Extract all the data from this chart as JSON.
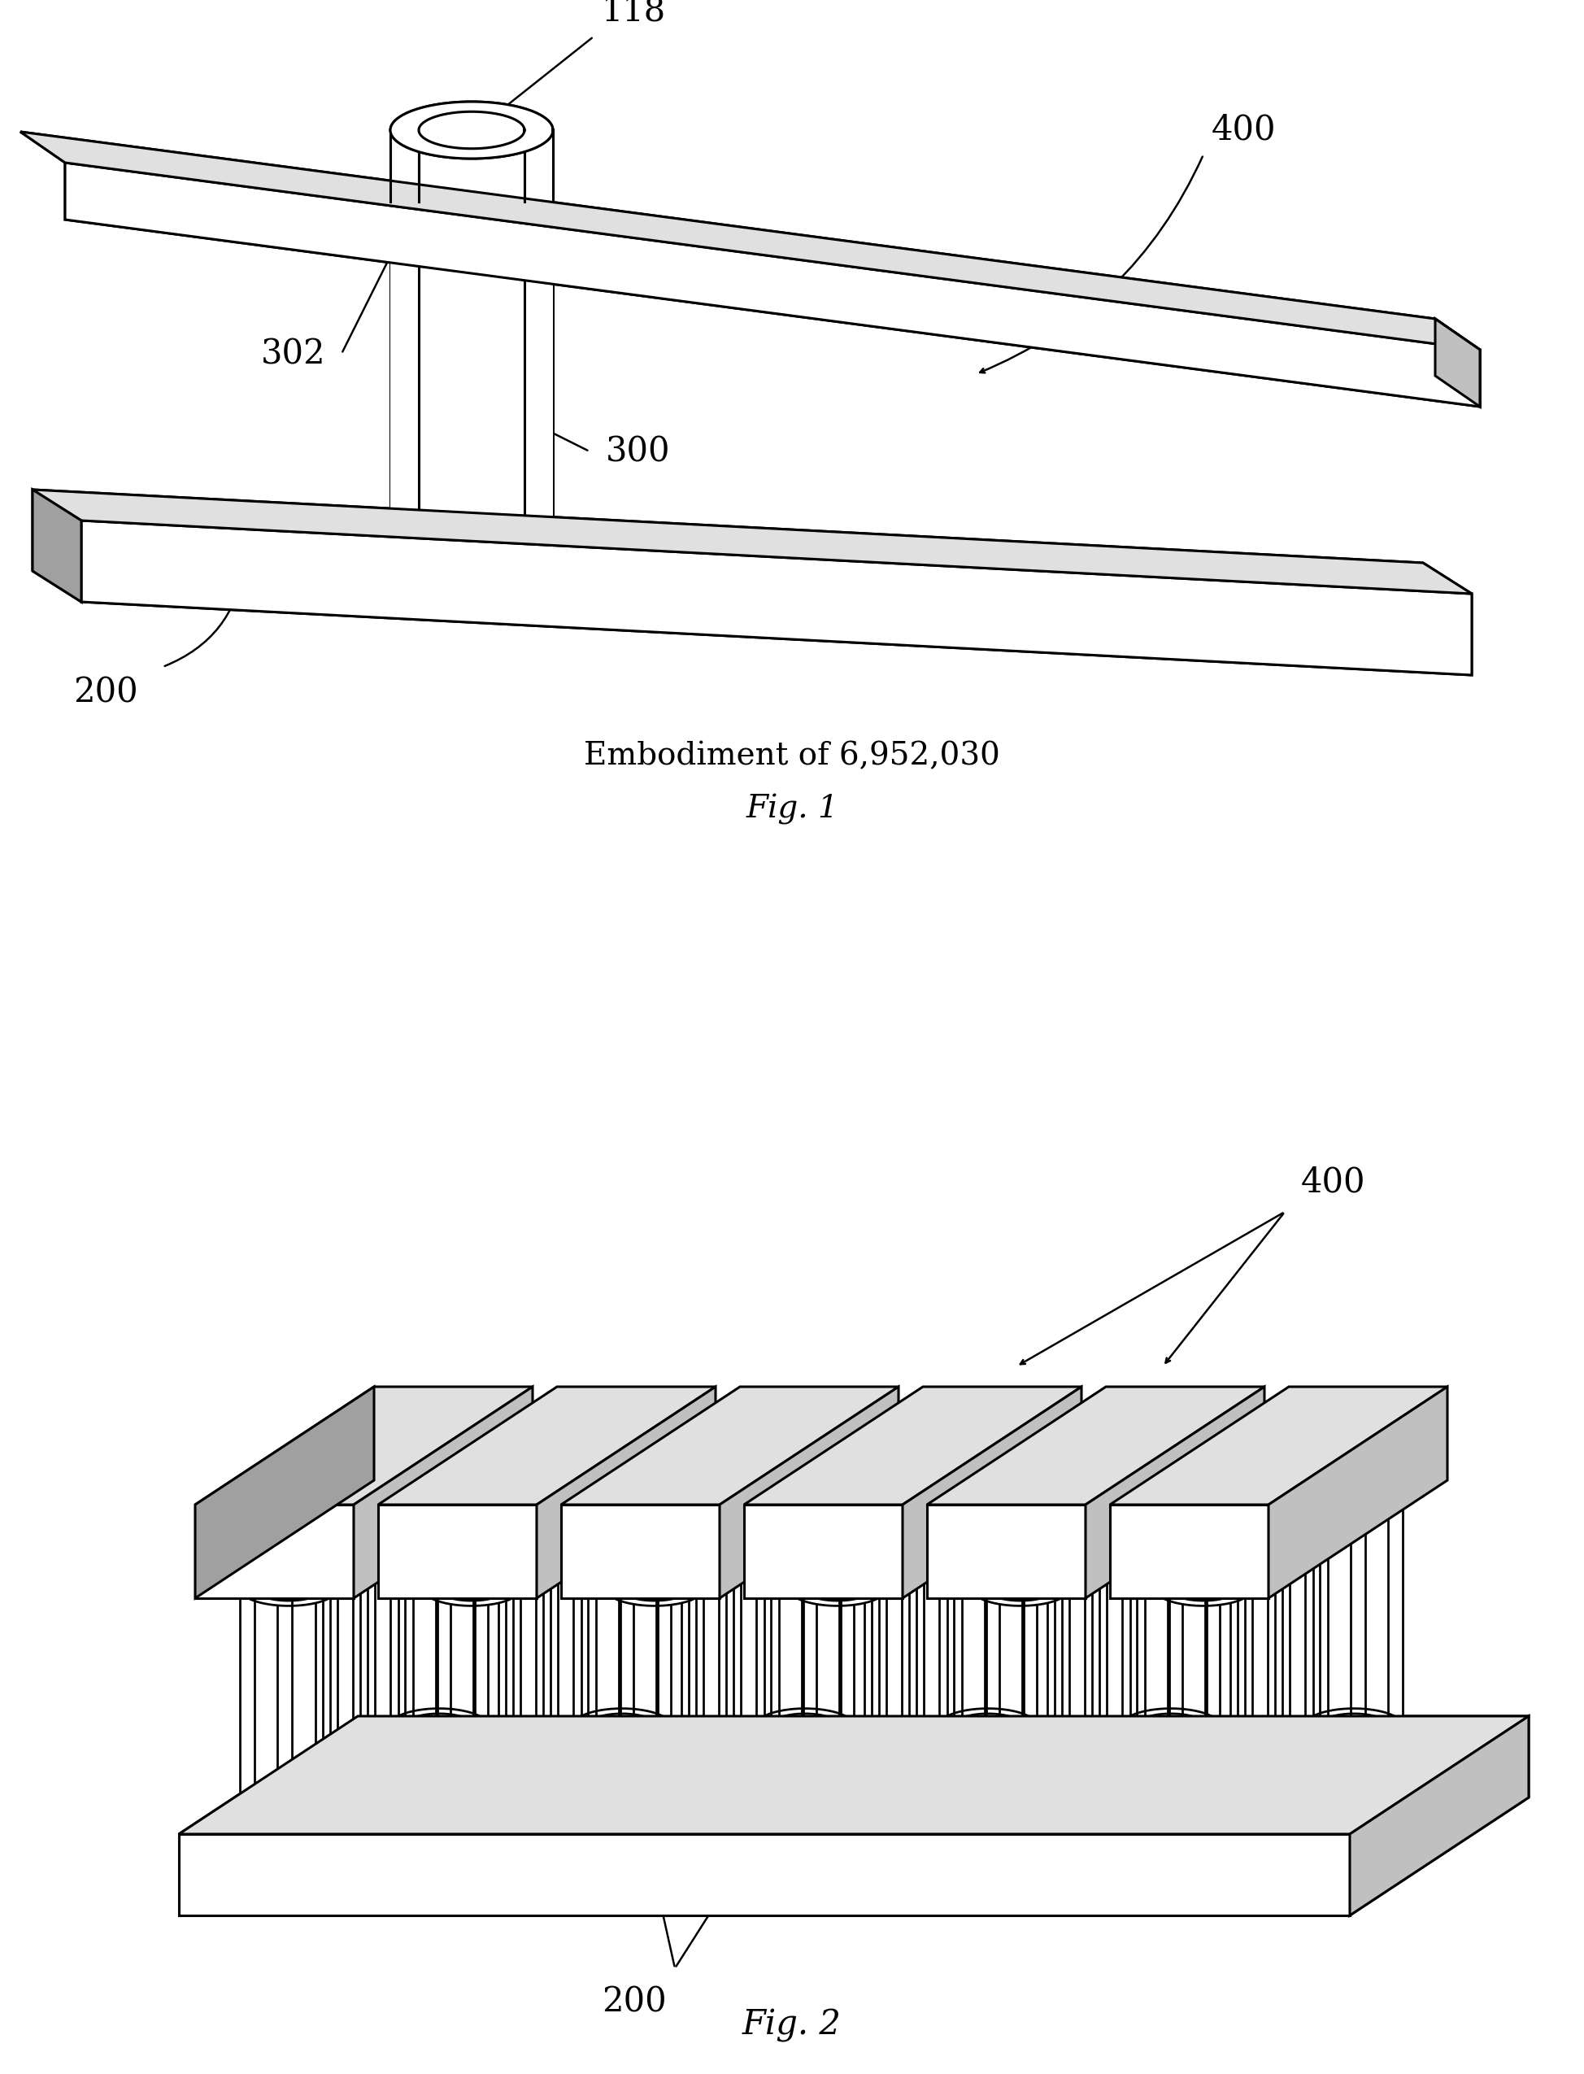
{
  "fig1_caption": "Embodiment of 6,952,030",
  "fig1_label": "Fig. 1",
  "fig2_label": "Fig. 2",
  "bg_color": "#ffffff",
  "line_color": "#000000",
  "face_white": "#ffffff",
  "face_light": "#e0e0e0",
  "face_mid": "#c0c0c0",
  "face_dark": "#a0a0a0"
}
